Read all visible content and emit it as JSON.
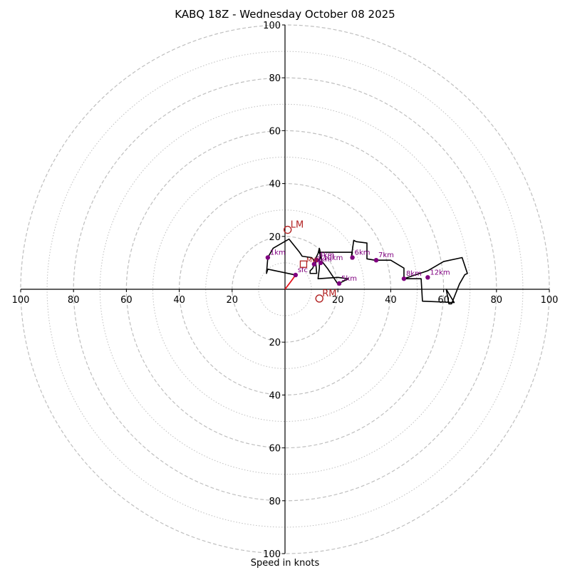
{
  "chart_data": {
    "type": "hodograph",
    "title": "KABQ 18Z - Wednesday October 08 2025",
    "xlabel": "Speed in knots",
    "ring_spacing": 10,
    "ylim": [
      -100,
      100
    ],
    "xlim": [
      -100,
      100
    ],
    "axis_ticks": [
      20,
      40,
      60,
      80,
      100
    ],
    "x_tick_labels": [
      "100",
      "80",
      "60",
      "40",
      "20",
      "20",
      "40",
      "60",
      "80",
      "100"
    ],
    "y_tick_labels": [
      "100",
      "80",
      "60",
      "40",
      "20",
      "20",
      "40",
      "60",
      "80",
      "100"
    ],
    "lowest_segment": [
      [
        0,
        0
      ],
      [
        2.5,
        3.3
      ],
      [
        4,
        5.4
      ]
    ],
    "profile": [
      [
        4,
        5.4
      ],
      [
        -6.5,
        7.6
      ],
      [
        -7,
        6
      ],
      [
        -6.5,
        12
      ],
      [
        -4.5,
        15.5
      ],
      [
        1.5,
        19
      ],
      [
        5.5,
        14
      ],
      [
        6.5,
        12.5
      ],
      [
        10,
        12
      ],
      [
        11.5,
        10.5
      ],
      [
        11,
        9.5
      ],
      [
        10.5,
        8
      ],
      [
        9.5,
        7
      ],
      [
        9.5,
        6
      ],
      [
        12,
        6
      ],
      [
        11.5,
        11.5
      ],
      [
        12.5,
        13.5
      ],
      [
        13,
        15.5
      ],
      [
        13.5,
        13
      ],
      [
        13,
        11
      ],
      [
        13,
        8
      ],
      [
        12.5,
        4
      ],
      [
        20,
        4.5
      ],
      [
        24,
        4
      ],
      [
        20,
        2
      ],
      [
        18,
        5
      ],
      [
        16,
        8
      ],
      [
        14,
        10.5
      ],
      [
        13,
        14
      ],
      [
        25.5,
        14
      ],
      [
        25,
        11.5
      ],
      [
        26,
        18.5
      ],
      [
        27,
        18
      ],
      [
        31,
        17.5
      ],
      [
        31,
        11.5
      ],
      [
        34,
        11
      ],
      [
        40,
        11
      ],
      [
        45,
        8
      ],
      [
        45,
        4
      ],
      [
        54,
        7
      ],
      [
        60,
        10.5
      ],
      [
        67,
        12
      ],
      [
        69,
        6
      ],
      [
        68,
        5.5
      ],
      [
        66,
        2
      ],
      [
        63,
        -5.5
      ],
      [
        62,
        -5.5
      ],
      [
        61,
        0
      ],
      [
        64,
        -5
      ],
      [
        52,
        -4.5
      ],
      [
        51.5,
        4
      ],
      [
        45,
        4
      ]
    ],
    "height_markers": [
      {
        "label": "1km",
        "u": -6.5,
        "v": 12
      },
      {
        "label": "sfc",
        "u": 4,
        "v": 5.4
      },
      {
        "label": "3km",
        "u": 11,
        "v": 9.5
      },
      {
        "label": "4km",
        "u": 12,
        "v": 11
      },
      {
        "label": "10km",
        "u": 13.5,
        "v": 10
      },
      {
        "label": "5km",
        "u": 20.5,
        "v": 2.2
      },
      {
        "label": "6km",
        "u": 25.5,
        "v": 12
      },
      {
        "label": "7km",
        "u": 34.5,
        "v": 11
      },
      {
        "label": "8km",
        "u": 45,
        "v": 4
      },
      {
        "label": "12km",
        "u": 54,
        "v": 4.5
      }
    ],
    "storm_motions": [
      {
        "label": "LM",
        "u": 1,
        "v": 22.5
      },
      {
        "label": "RM",
        "u": 13,
        "v": -3.5
      }
    ],
    "mean_wind": {
      "label": "MW",
      "u": 7,
      "v": 9.5
    },
    "colors": {
      "grid": "#bfbfbf",
      "profile": "#000000",
      "lowest_segment": "#e3121a",
      "markers": "#800080",
      "storm_motion": "#b22222"
    }
  }
}
